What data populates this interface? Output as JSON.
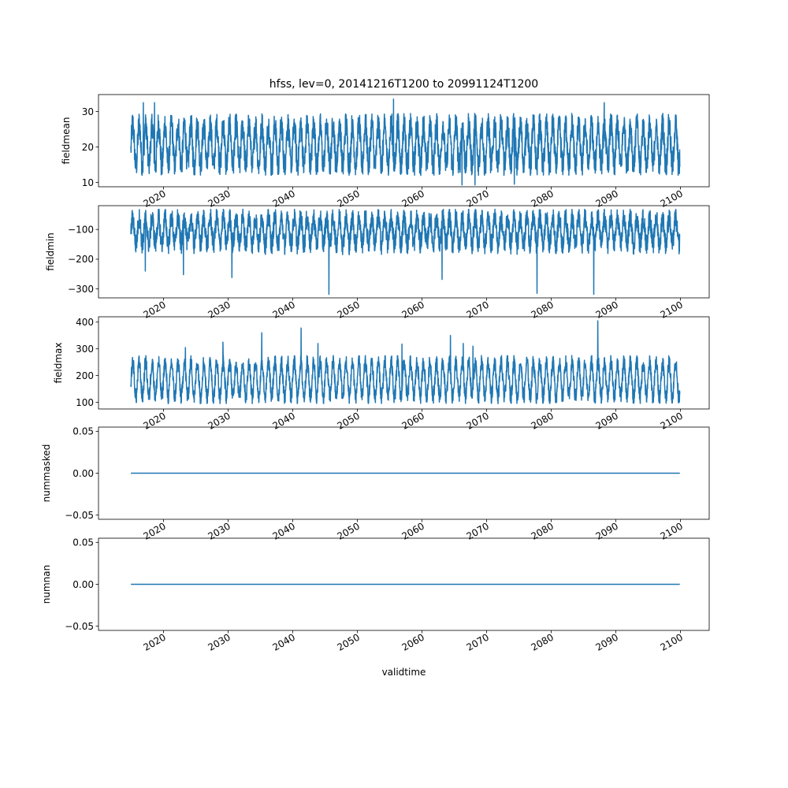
{
  "figure": {
    "title": "hfss, lev=0, 20141216T1200 to 20991124T1200",
    "xlabel": "validtime",
    "line_color": "#1f77b4"
  },
  "chart_data": [
    {
      "type": "line",
      "ylabel": "fieldmean",
      "xlim": [
        2009.95,
        2104.45
      ],
      "ylim": [
        8.8,
        34.8
      ],
      "x_range": [
        2014.96,
        2099.9
      ],
      "xticks": [
        2020,
        2030,
        2040,
        2050,
        2060,
        2070,
        2080,
        2090,
        2100
      ],
      "xtick_labels": [
        "2020",
        "2030",
        "2040",
        "2050",
        "2060",
        "2070",
        "2080",
        "2090",
        "2100"
      ],
      "yticks": [
        10,
        20,
        30
      ],
      "ytick_labels": [
        "10",
        "20",
        "30"
      ],
      "seasonal": {
        "mean": 20.5,
        "amplitude": 6.0,
        "noise": 4.0
      },
      "envelope": {
        "upper": 29.5,
        "lower": 12.0
      },
      "spikes": [
        [
          2016.9,
          32.5
        ],
        [
          2018.6,
          32.5
        ],
        [
          2055.6,
          33.5
        ],
        [
          2088.2,
          32.5
        ],
        [
          2066.2,
          9.3
        ],
        [
          2068.2,
          9.3
        ],
        [
          2074.3,
          9.5
        ]
      ]
    },
    {
      "type": "line",
      "ylabel": "fieldmin",
      "xlim": [
        2009.95,
        2104.45
      ],
      "ylim": [
        -330,
        -20
      ],
      "x_range": [
        2014.96,
        2099.9
      ],
      "xticks": [
        2020,
        2030,
        2040,
        2050,
        2060,
        2070,
        2080,
        2090,
        2100
      ],
      "xtick_labels": [
        "2020",
        "2030",
        "2040",
        "2050",
        "2060",
        "2070",
        "2080",
        "2090",
        "2100"
      ],
      "yticks": [
        -300,
        -200,
        -100
      ],
      "ytick_labels": [
        "−300",
        "−200",
        "−100"
      ],
      "seasonal": {
        "mean": -105,
        "amplitude": 45,
        "noise": 35
      },
      "envelope": {
        "upper": -32,
        "lower": -230
      },
      "spikes": [
        [
          2045.6,
          -318
        ],
        [
          2077.8,
          -315
        ],
        [
          2086.6,
          -318
        ],
        [
          2030.6,
          -262
        ],
        [
          2023.1,
          -252
        ],
        [
          2063.1,
          -268
        ],
        [
          2017.2,
          -240
        ]
      ]
    },
    {
      "type": "line",
      "ylabel": "fieldmax",
      "xlim": [
        2009.95,
        2104.45
      ],
      "ylim": [
        75,
        420
      ],
      "x_range": [
        2014.96,
        2099.9
      ],
      "xticks": [
        2020,
        2030,
        2040,
        2050,
        2060,
        2070,
        2080,
        2090,
        2100
      ],
      "xtick_labels": [
        "2020",
        "2030",
        "2040",
        "2050",
        "2060",
        "2070",
        "2080",
        "2090",
        "2100"
      ],
      "yticks": [
        100,
        200,
        300,
        400
      ],
      "ytick_labels": [
        "100",
        "200",
        "300",
        "400"
      ],
      "seasonal": {
        "mean": 185,
        "amplitude": 65,
        "noise": 30
      },
      "envelope": {
        "upper": 275,
        "lower": 95
      },
      "spikes": [
        [
          2087.2,
          405
        ],
        [
          2041.3,
          378
        ],
        [
          2035.2,
          360
        ],
        [
          2064.4,
          350
        ],
        [
          2029.2,
          325
        ],
        [
          2043.9,
          320
        ],
        [
          2056.9,
          318
        ],
        [
          2066.4,
          320
        ],
        [
          2067.9,
          310
        ],
        [
          2023.4,
          305
        ]
      ]
    },
    {
      "type": "line",
      "ylabel": "nummasked",
      "xlim": [
        2009.95,
        2104.45
      ],
      "ylim": [
        -0.055,
        0.055
      ],
      "x_range": [
        2014.96,
        2099.9
      ],
      "xticks": [
        2020,
        2030,
        2040,
        2050,
        2060,
        2070,
        2080,
        2090,
        2100
      ],
      "xtick_labels": [
        "2020",
        "2030",
        "2040",
        "2050",
        "2060",
        "2070",
        "2080",
        "2090",
        "2100"
      ],
      "yticks": [
        -0.05,
        0.0,
        0.05
      ],
      "ytick_labels": [
        "−0.05",
        "0.00",
        "0.05"
      ],
      "constant": 0.0
    },
    {
      "type": "line",
      "ylabel": "numnan",
      "xlim": [
        2009.95,
        2104.45
      ],
      "ylim": [
        -0.055,
        0.055
      ],
      "x_range": [
        2014.96,
        2099.9
      ],
      "xticks": [
        2020,
        2030,
        2040,
        2050,
        2060,
        2070,
        2080,
        2090,
        2100
      ],
      "xtick_labels": [
        "2020",
        "2030",
        "2040",
        "2050",
        "2060",
        "2070",
        "2080",
        "2090",
        "2100"
      ],
      "yticks": [
        -0.05,
        0.0,
        0.05
      ],
      "ytick_labels": [
        "−0.05",
        "0.00",
        "0.05"
      ],
      "constant": 0.0
    }
  ]
}
